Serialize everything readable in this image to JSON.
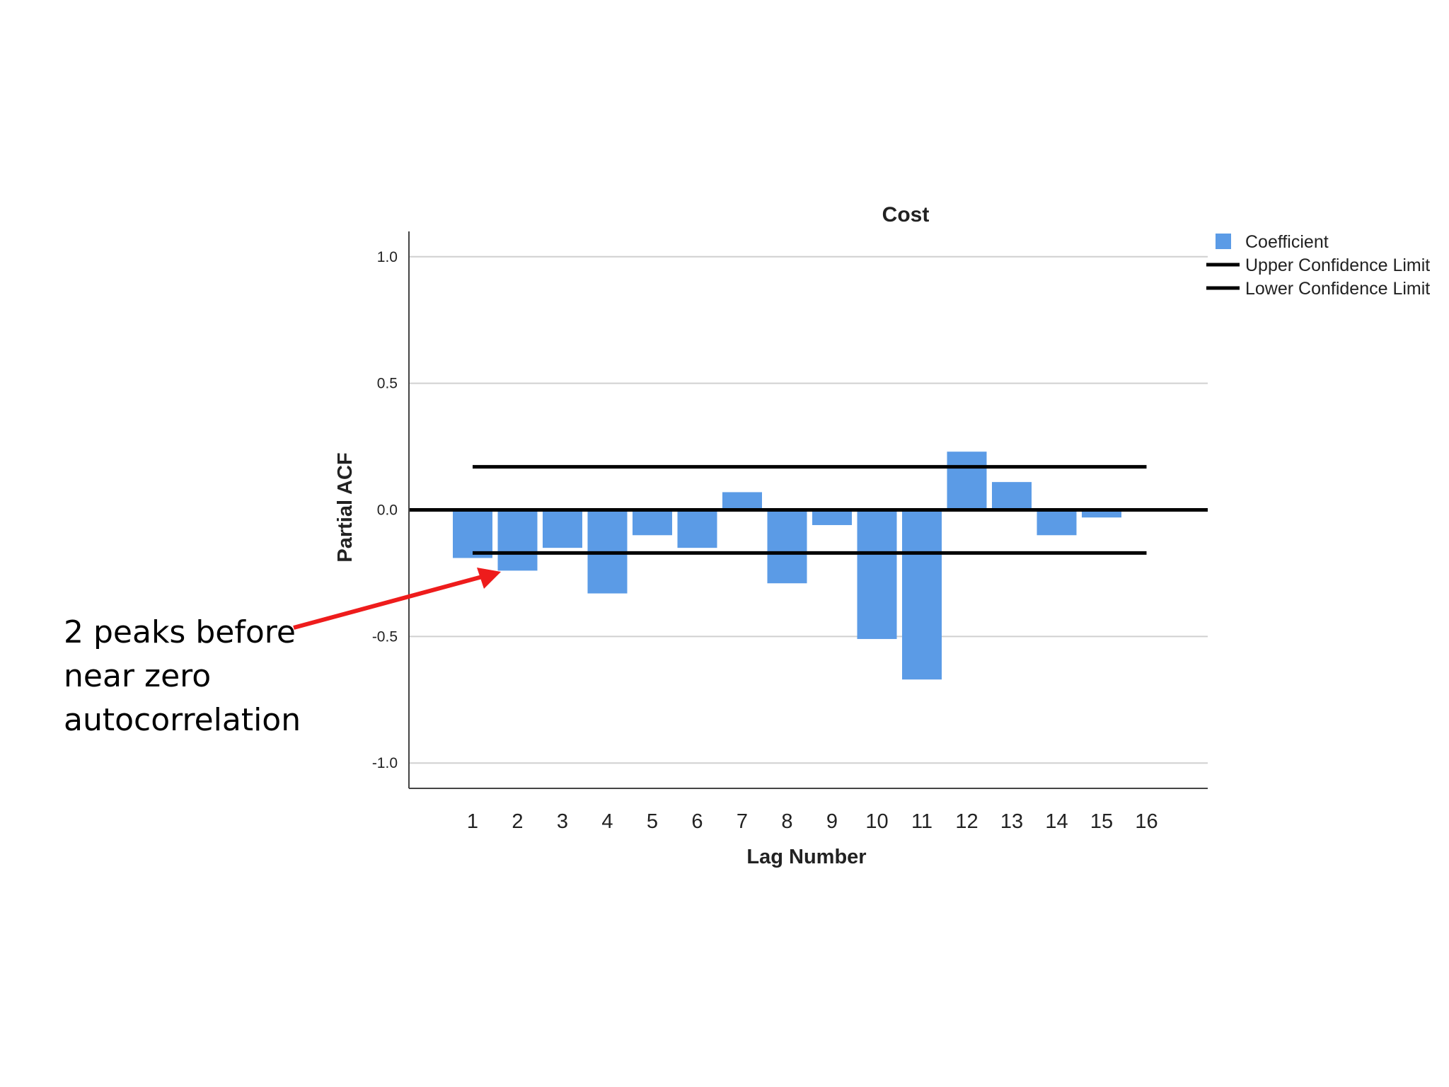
{
  "chart_data": {
    "type": "bar",
    "title": "Cost",
    "xlabel": "Lag Number",
    "ylabel": "Partial ACF",
    "ylim": [
      -1.1,
      1.1
    ],
    "yticks": [
      1.0,
      0.5,
      0.0,
      -0.5,
      -1.0
    ],
    "ytick_labels": [
      "1.0",
      "0.5",
      "0.0",
      "-0.5",
      "-1.0"
    ],
    "categories": [
      "1",
      "2",
      "3",
      "4",
      "5",
      "6",
      "7",
      "8",
      "9",
      "10",
      "11",
      "12",
      "13",
      "14",
      "15",
      "16"
    ],
    "series": [
      {
        "name": "Coefficient",
        "values": [
          -0.19,
          -0.24,
          -0.15,
          -0.33,
          -0.1,
          -0.15,
          0.07,
          -0.29,
          -0.06,
          -0.51,
          -0.67,
          0.23,
          0.11,
          -0.1,
          -0.03,
          null
        ]
      }
    ],
    "confidence_limits": {
      "upper": {
        "name": "Upper Confidence Limit",
        "value": 0.17
      },
      "lower": {
        "name": "Lower Confidence Limit",
        "value": -0.17
      }
    },
    "grid": true,
    "legend_position": "top-right",
    "colors": {
      "bar": "#5b9be6",
      "limit": "#000000",
      "grid": "#d0d0d0",
      "arrow": "#ee1c1c"
    }
  },
  "annotation": {
    "lines": [
      "2 peaks before",
      "near zero",
      "autocorrelation"
    ],
    "points_to_lag": "2"
  }
}
